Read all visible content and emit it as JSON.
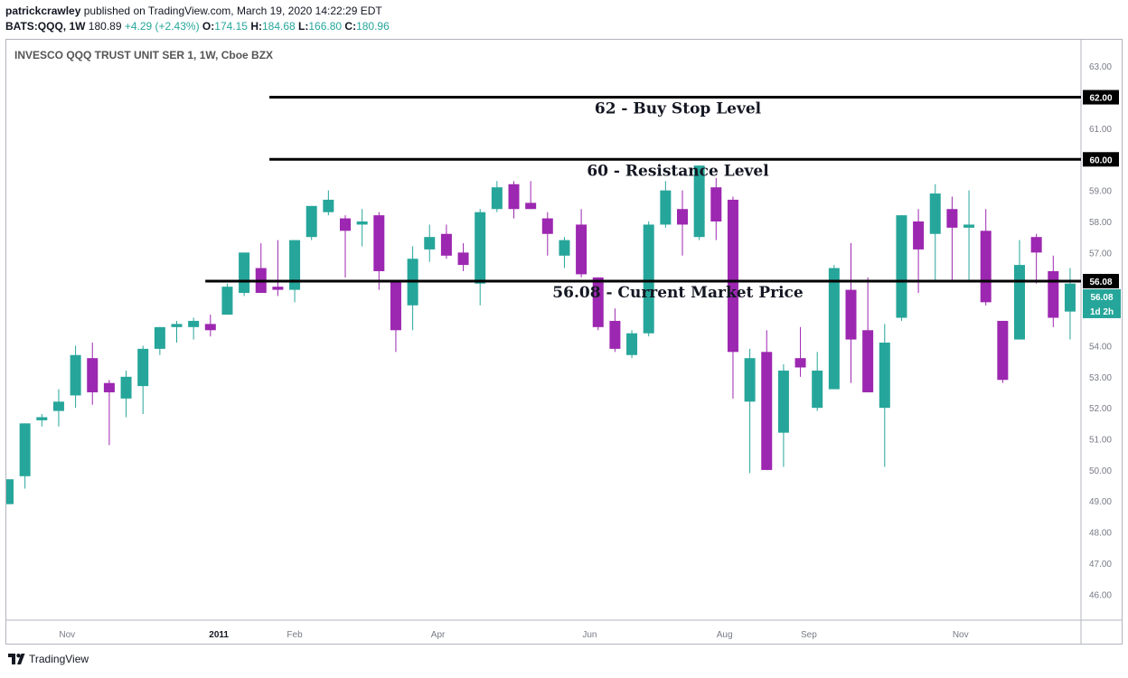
{
  "header": {
    "author": "patrickcrawley",
    "published_text": "published on TradingView.com, March 19, 2020 14:22:29 EDT",
    "symbol": "BATS:QQQ, 1W",
    "last": "180.89",
    "change": "+4.29 (+2.43%)",
    "open_label": "O:",
    "open": "174.15",
    "high_label": "H:",
    "high": "184.68",
    "low_label": "L:",
    "low": "166.80",
    "close_label": "C:",
    "close": "180.96"
  },
  "footer": {
    "brand": "TradingView",
    "logo_icon": "tradingview-logo-icon"
  },
  "colors": {
    "up": "#26a69a",
    "down": "#9c27b0",
    "line": "#000000",
    "grid": "#f0f3fa",
    "axis_text": "#787b86"
  },
  "chart_data": {
    "type": "candlestick",
    "title": "INVESCO QQQ TRUST UNIT SER 1, 1W, Cboe BZX",
    "ylim": [
      45,
      63.5
    ],
    "y_ticks": [
      "46.00",
      "47.00",
      "48.00",
      "49.00",
      "50.00",
      "51.00",
      "52.00",
      "53.00",
      "54.00",
      "55.00",
      "56.00",
      "57.00",
      "58.00",
      "59.00",
      "60.00",
      "61.00",
      "62.00",
      "63.00"
    ],
    "x_ticks": [
      {
        "label": "Nov",
        "bar": 3.5
      },
      {
        "label": "2011",
        "bar": 12.5
      },
      {
        "label": "Feb",
        "bar": 17
      },
      {
        "label": "Apr",
        "bar": 25.5
      },
      {
        "label": "Jun",
        "bar": 34.5
      },
      {
        "label": "Aug",
        "bar": 42.5
      },
      {
        "label": "Sep",
        "bar": 47.5
      },
      {
        "label": "Nov",
        "bar": 56.5
      }
    ],
    "candles": [
      {
        "o": 48.9,
        "h": 49.7,
        "l": 48.9,
        "c": 49.7
      },
      {
        "o": 49.8,
        "h": 51.5,
        "l": 49.4,
        "c": 51.5
      },
      {
        "o": 51.6,
        "h": 51.8,
        "l": 51.4,
        "c": 51.7
      },
      {
        "o": 51.9,
        "h": 52.6,
        "l": 51.4,
        "c": 52.2
      },
      {
        "o": 52.4,
        "h": 54.0,
        "l": 52.0,
        "c": 53.7
      },
      {
        "o": 53.6,
        "h": 54.1,
        "l": 52.1,
        "c": 52.5
      },
      {
        "o": 52.8,
        "h": 52.9,
        "l": 50.8,
        "c": 52.5
      },
      {
        "o": 52.3,
        "h": 53.2,
        "l": 51.7,
        "c": 53.0
      },
      {
        "o": 52.7,
        "h": 54.0,
        "l": 51.8,
        "c": 53.9
      },
      {
        "o": 53.9,
        "h": 54.6,
        "l": 53.7,
        "c": 54.6
      },
      {
        "o": 54.6,
        "h": 54.8,
        "l": 54.1,
        "c": 54.7
      },
      {
        "o": 54.6,
        "h": 54.9,
        "l": 54.2,
        "c": 54.8
      },
      {
        "o": 54.7,
        "h": 55.0,
        "l": 54.3,
        "c": 54.5
      },
      {
        "o": 55.0,
        "h": 56.0,
        "l": 55.0,
        "c": 55.9
      },
      {
        "o": 55.7,
        "h": 57.0,
        "l": 55.6,
        "c": 57.0
      },
      {
        "o": 56.5,
        "h": 57.3,
        "l": 55.7,
        "c": 55.7
      },
      {
        "o": 55.9,
        "h": 57.4,
        "l": 55.6,
        "c": 55.8
      },
      {
        "o": 55.8,
        "h": 57.4,
        "l": 55.4,
        "c": 57.4
      },
      {
        "o": 57.5,
        "h": 58.5,
        "l": 57.4,
        "c": 58.5
      },
      {
        "o": 58.3,
        "h": 59.0,
        "l": 58.2,
        "c": 58.7
      },
      {
        "o": 58.1,
        "h": 58.2,
        "l": 56.2,
        "c": 57.7
      },
      {
        "o": 57.9,
        "h": 58.4,
        "l": 57.2,
        "c": 58.0
      },
      {
        "o": 58.2,
        "h": 58.3,
        "l": 55.8,
        "c": 56.4
      },
      {
        "o": 56.1,
        "h": 56.1,
        "l": 53.8,
        "c": 54.5
      },
      {
        "o": 55.3,
        "h": 57.2,
        "l": 54.5,
        "c": 56.8
      },
      {
        "o": 57.1,
        "h": 57.9,
        "l": 56.7,
        "c": 57.5
      },
      {
        "o": 57.6,
        "h": 57.9,
        "l": 56.8,
        "c": 56.9
      },
      {
        "o": 57.0,
        "h": 57.3,
        "l": 56.4,
        "c": 56.6
      },
      {
        "o": 56.0,
        "h": 58.4,
        "l": 55.3,
        "c": 58.3
      },
      {
        "o": 58.4,
        "h": 59.3,
        "l": 58.3,
        "c": 59.1
      },
      {
        "o": 59.2,
        "h": 59.3,
        "l": 58.1,
        "c": 58.4
      },
      {
        "o": 58.6,
        "h": 59.3,
        "l": 58.4,
        "c": 58.4
      },
      {
        "o": 58.1,
        "h": 58.3,
        "l": 56.9,
        "c": 57.6
      },
      {
        "o": 56.9,
        "h": 57.5,
        "l": 56.5,
        "c": 57.4
      },
      {
        "o": 57.9,
        "h": 58.4,
        "l": 56.2,
        "c": 56.3
      },
      {
        "o": 56.2,
        "h": 56.2,
        "l": 54.5,
        "c": 54.6
      },
      {
        "o": 54.8,
        "h": 55.2,
        "l": 53.8,
        "c": 53.9
      },
      {
        "o": 53.7,
        "h": 54.5,
        "l": 53.6,
        "c": 54.4
      },
      {
        "o": 54.4,
        "h": 58.0,
        "l": 54.3,
        "c": 57.9
      },
      {
        "o": 57.9,
        "h": 59.3,
        "l": 57.8,
        "c": 59.0
      },
      {
        "o": 58.4,
        "h": 59.0,
        "l": 56.9,
        "c": 57.9
      },
      {
        "o": 57.5,
        "h": 59.8,
        "l": 57.4,
        "c": 59.8
      },
      {
        "o": 59.1,
        "h": 59.4,
        "l": 57.4,
        "c": 58.0
      },
      {
        "o": 58.7,
        "h": 58.8,
        "l": 52.3,
        "c": 53.8
      },
      {
        "o": 52.2,
        "h": 53.9,
        "l": 49.9,
        "c": 53.6
      },
      {
        "o": 53.8,
        "h": 54.5,
        "l": 50.0,
        "c": 50.0
      },
      {
        "o": 51.2,
        "h": 53.4,
        "l": 50.1,
        "c": 53.2
      },
      {
        "o": 53.6,
        "h": 54.6,
        "l": 53.0,
        "c": 53.3
      },
      {
        "o": 52.0,
        "h": 53.8,
        "l": 51.9,
        "c": 53.2
      },
      {
        "o": 52.6,
        "h": 56.6,
        "l": 52.6,
        "c": 56.5
      },
      {
        "o": 55.8,
        "h": 57.3,
        "l": 52.8,
        "c": 54.2
      },
      {
        "o": 54.5,
        "h": 56.2,
        "l": 52.5,
        "c": 52.5
      },
      {
        "o": 52.0,
        "h": 54.7,
        "l": 50.1,
        "c": 54.1
      },
      {
        "o": 54.9,
        "h": 58.2,
        "l": 54.8,
        "c": 58.2
      },
      {
        "o": 58.0,
        "h": 58.4,
        "l": 55.7,
        "c": 57.1
      },
      {
        "o": 57.6,
        "h": 59.2,
        "l": 56.1,
        "c": 58.9
      },
      {
        "o": 58.4,
        "h": 58.8,
        "l": 56.1,
        "c": 57.8
      },
      {
        "o": 57.8,
        "h": 59.0,
        "l": 56.1,
        "c": 57.9
      },
      {
        "o": 57.7,
        "h": 58.4,
        "l": 55.3,
        "c": 55.4
      },
      {
        "o": 54.8,
        "h": 54.8,
        "l": 52.8,
        "c": 52.9
      },
      {
        "o": 54.2,
        "h": 57.4,
        "l": 54.2,
        "c": 56.6
      },
      {
        "o": 57.5,
        "h": 57.6,
        "l": 56.0,
        "c": 57.0
      },
      {
        "o": 56.4,
        "h": 56.9,
        "l": 54.6,
        "c": 54.9
      },
      {
        "o": 55.1,
        "h": 56.5,
        "l": 54.2,
        "c": 56.0
      }
    ],
    "levels": [
      {
        "price": 62.0,
        "label": "62 - Buy Stop Level",
        "start_bar": 15.5,
        "price_label": "62.00"
      },
      {
        "price": 60.0,
        "label": "60 - Resistance Level",
        "start_bar": 15.5,
        "price_label": "60.00"
      },
      {
        "price": 56.08,
        "label": "56.08 - Current Market Price",
        "start_bar": 11.7,
        "price_label": "56.08"
      }
    ],
    "last_price": {
      "value": 56.08,
      "label": "56.08",
      "countdown": "1d 2h"
    }
  }
}
